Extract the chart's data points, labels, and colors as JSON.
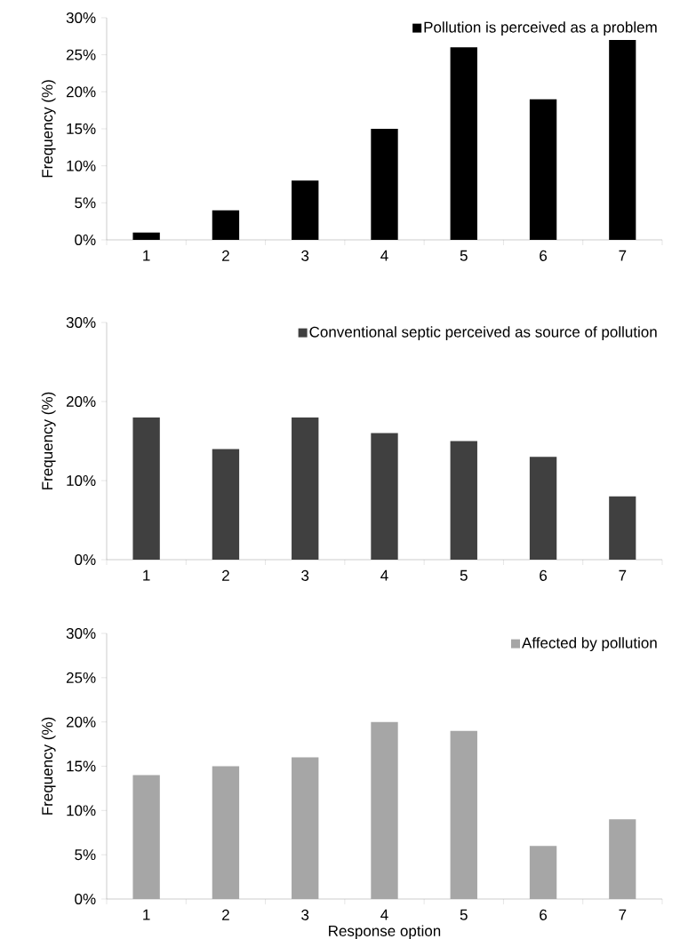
{
  "chart_data": [
    {
      "type": "bar",
      "categories": [
        "1",
        "2",
        "3",
        "4",
        "5",
        "6",
        "7"
      ],
      "ylabel": "Frequency (%)",
      "legend": "top right",
      "ylim": [
        0,
        30
      ],
      "yticks": [
        {
          "value": 0,
          "label": "0%"
        },
        {
          "value": 5,
          "label": "5%"
        },
        {
          "value": 10,
          "label": "10%"
        },
        {
          "value": 15,
          "label": "15%"
        },
        {
          "value": 20,
          "label": "20%"
        },
        {
          "value": 25,
          "label": "25%"
        },
        {
          "value": 30,
          "label": "30%"
        }
      ],
      "series": [
        {
          "name": "Pollution is perceived as a problem",
          "color": "#000000",
          "values": [
            1,
            4,
            8,
            15,
            26,
            19,
            27
          ]
        }
      ]
    },
    {
      "type": "bar",
      "categories": [
        "1",
        "2",
        "3",
        "4",
        "5",
        "6",
        "7"
      ],
      "ylabel": "Frequency (%)",
      "legend": "top right",
      "ylim": [
        0,
        30
      ],
      "yticks": [
        {
          "value": 0,
          "label": "0%"
        },
        {
          "value": 10,
          "label": "10%"
        },
        {
          "value": 20,
          "label": "20%"
        },
        {
          "value": 30,
          "label": "30%"
        }
      ],
      "series": [
        {
          "name": "Conventional septic perceived as source of pollution",
          "color": "#404040",
          "values": [
            18,
            14,
            18,
            16,
            15,
            13,
            8
          ]
        }
      ]
    },
    {
      "type": "bar",
      "categories": [
        "1",
        "2",
        "3",
        "4",
        "5",
        "6",
        "7"
      ],
      "xlabel": "Response option",
      "ylabel": "Frequency (%)",
      "legend": "top right",
      "ylim": [
        0,
        30
      ],
      "yticks": [
        {
          "value": 0,
          "label": "0%"
        },
        {
          "value": 5,
          "label": "5%"
        },
        {
          "value": 10,
          "label": "10%"
        },
        {
          "value": 15,
          "label": "15%"
        },
        {
          "value": 20,
          "label": "20%"
        },
        {
          "value": 25,
          "label": "25%"
        },
        {
          "value": 30,
          "label": "30%"
        }
      ],
      "series": [
        {
          "name": "Affected by pollution",
          "color": "#a6a6a6",
          "values": [
            14,
            15,
            16,
            20,
            19,
            6,
            9
          ]
        }
      ]
    }
  ]
}
